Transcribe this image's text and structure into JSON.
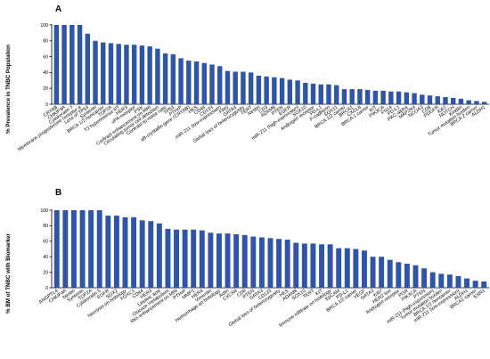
{
  "chart_data": [
    {
      "panel": "A",
      "type": "bar",
      "ylabel": "% Prevalence in TNBC Population",
      "ylim": [
        0,
        100
      ],
      "yticks": [
        0,
        20,
        40,
        60,
        80,
        100
      ],
      "categories": [
        "CRYAB",
        "CHKIF4A",
        "Cytokeratin 7",
        "Membrane progesterone receptor a",
        "Loss of TP53",
        "Syntenin",
        "BRCA 1/2 noncarrier",
        "TOP2A",
        "T2 hyperintense RT",
        "HER3",
        "uPA-receptor",
        "PSK",
        "Contrast enhancement on MRI",
        "Circulating tumor cell detection",
        "Contrast-to-noise ratio",
        "TP53",
        "PTHrP",
        "aB-crystallin gene (CRYAB)",
        "HES",
        "CD44",
        "CD133",
        "miR-211 (low-expression)",
        "FRG",
        "GATA3",
        "Global loss of heterozygosity",
        "TERT",
        "Nestin",
        "CD3",
        "ADAM8",
        "PTEN",
        "EGFR",
        "miR-211 (high-expression)",
        "SOX10",
        "Androgen receptor",
        "PD-L1",
        "P-cadherin",
        "SOX11",
        "BRCA 1/2 carrier",
        "BRCA1",
        "CXCL8",
        "BRCA 1 carrier",
        "KIT",
        "PIK3CA",
        "FN14",
        "PD-L1 ",
        "PKC-alpha",
        "MAP2K4",
        "NCOA3",
        "CD8",
        "PDGFR",
        "Ki67",
        "NOTCH",
        "Kindlin",
        "Tumor mutation burden",
        "BRCA 2 carrier",
        "ALDH1"
      ],
      "values": [
        100,
        100,
        100,
        100,
        89,
        80,
        78,
        77,
        76,
        75,
        75,
        74,
        73,
        70,
        64,
        63,
        58,
        55,
        54,
        52,
        50,
        48,
        42,
        41,
        41,
        40,
        36,
        35,
        34,
        33,
        31,
        30,
        27,
        26,
        25,
        25,
        24,
        19,
        19,
        19,
        18,
        17,
        17,
        16,
        16,
        15,
        14,
        12,
        11,
        10,
        9,
        8,
        7,
        5,
        4,
        3
      ]
    },
    {
      "panel": "B",
      "type": "bar",
      "ylabel": "% BM of TNBC with Biomarker",
      "ylim": [
        0,
        100
      ],
      "yticks": [
        0,
        20,
        40,
        60,
        80,
        100
      ],
      "categories": [
        "ANGPTL4",
        "CHKIF4A",
        "Nestin",
        "Syntenin",
        "TOP2A",
        "Cytokeratin 5",
        "EGFR",
        "SOX2",
        "Necrosis on histology",
        "FOXC1",
        "CD44",
        "HER3",
        "Linoleic acid",
        "Glucose metabolism",
        "Rim enhancement on MRI",
        "PTHrP",
        "MMP1",
        "HER4",
        "Vimentin",
        "Hemorrhage on histology",
        "Actin",
        "CXCR4",
        "CD8",
        "PTEN",
        "GATA3",
        "CD133",
        "Global loss of heterozygosity",
        "HES",
        "ADAM8",
        "SOX10",
        "TERT",
        "KIT",
        "Immune infiltrate on histology",
        "EpCAM",
        "PD-L1",
        "BRCA 1/2 carrier",
        "VEGF",
        "GATA3 ",
        "Ki67",
        "HER2 low",
        "Androgen receptor",
        "PGR",
        "PIK3CA",
        "PTEN ",
        "miR-211 (high-expression)",
        "Tumor mutation burden",
        "BRCA 1/2 noncarrier",
        "miR-211 (low-expression)",
        "ALDH1",
        "BRCA1 carrier",
        "ESR1"
      ],
      "values": [
        100,
        100,
        100,
        100,
        100,
        100,
        93,
        93,
        91,
        91,
        87,
        86,
        83,
        76,
        75,
        75,
        75,
        74,
        71,
        70,
        70,
        69,
        68,
        66,
        65,
        64,
        63,
        62,
        58,
        57,
        57,
        56,
        56,
        51,
        51,
        50,
        48,
        40,
        40,
        36,
        33,
        31,
        29,
        25,
        20,
        18,
        17,
        15,
        12,
        9,
        8
      ]
    }
  ]
}
